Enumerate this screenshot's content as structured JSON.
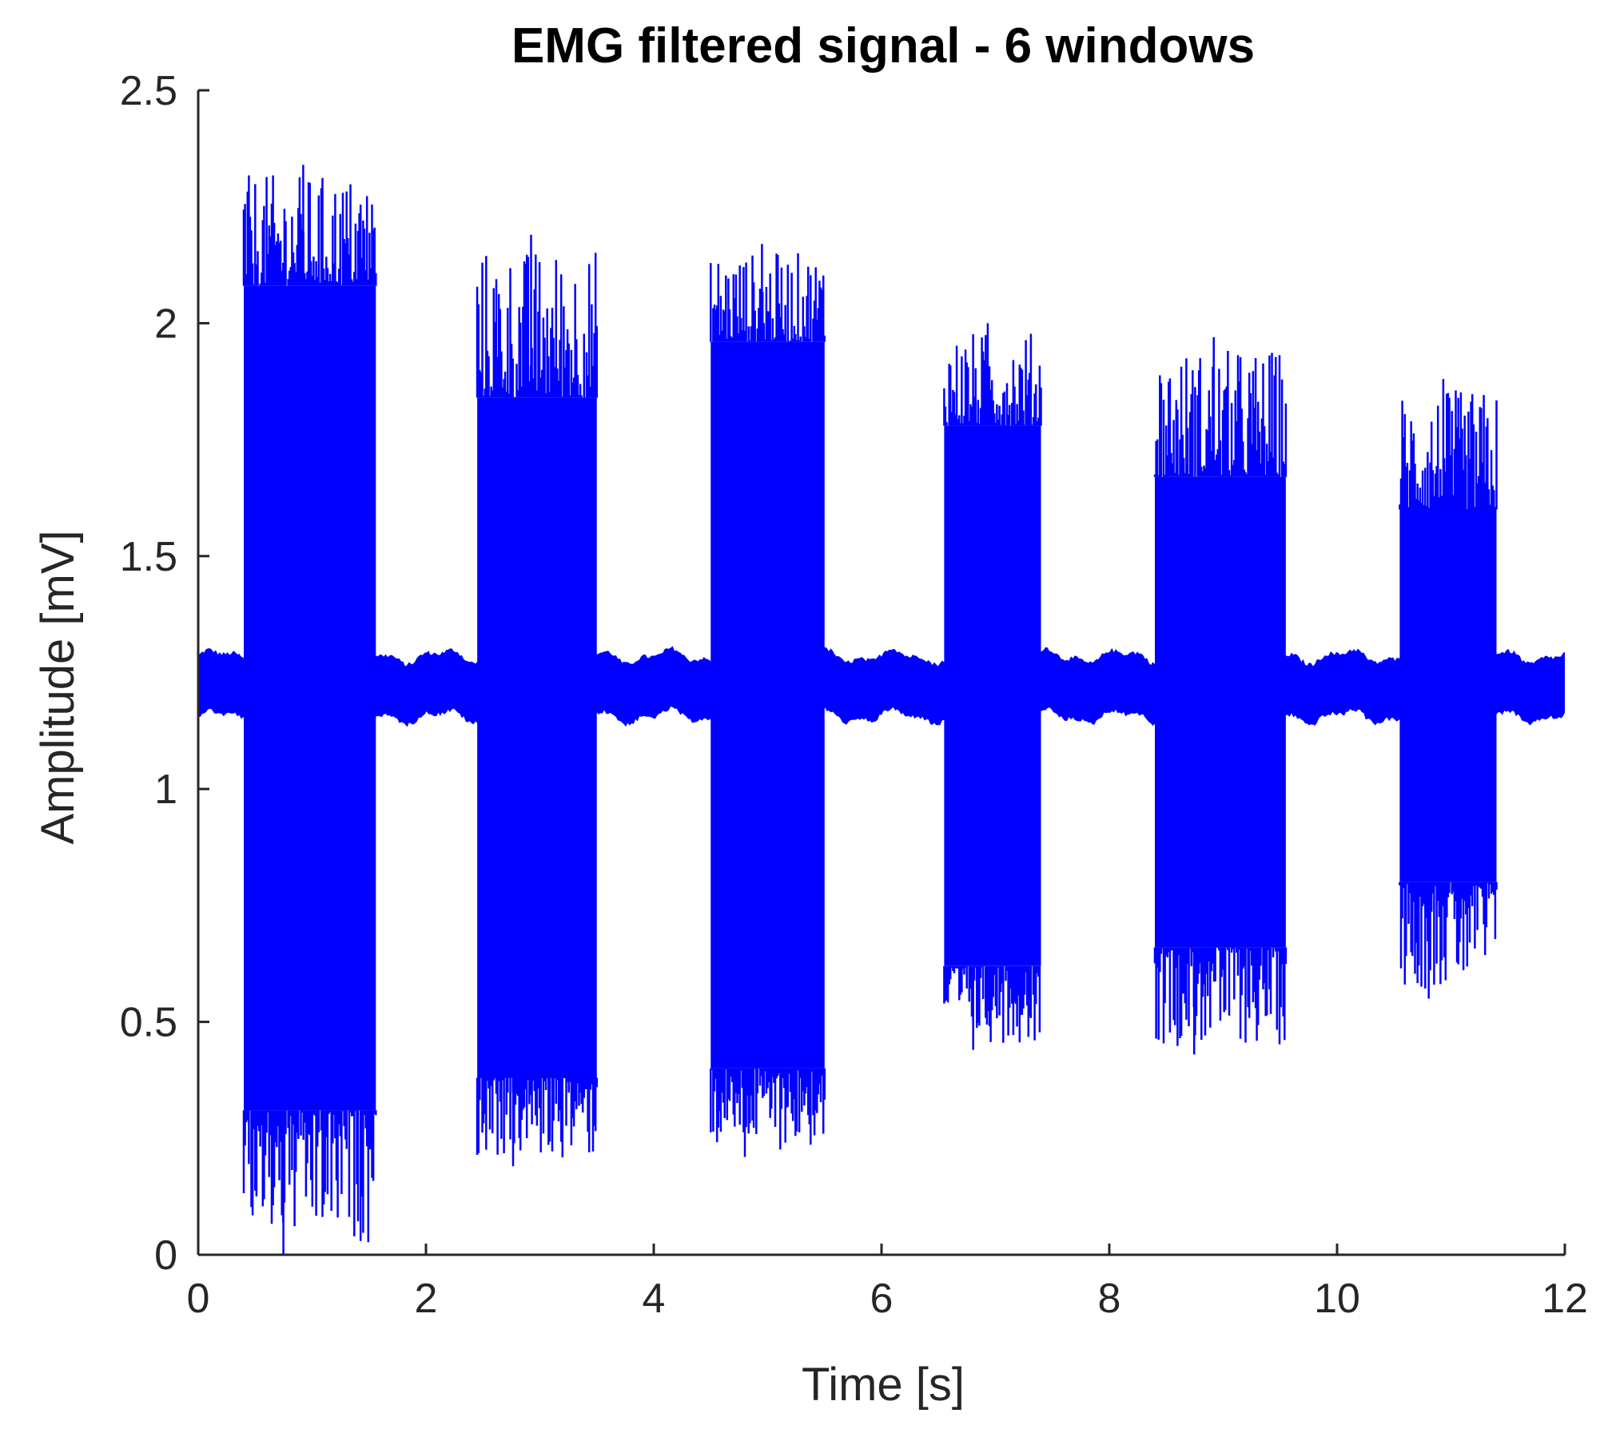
{
  "chart_data": {
    "type": "line",
    "title": "EMG filtered signal - 6 windows",
    "xlabel": "Time [s]",
    "ylabel": "Amplitude [mV]",
    "xlim": [
      0,
      12
    ],
    "ylim": [
      0,
      2.5
    ],
    "xticks": [
      0,
      2,
      4,
      6,
      8,
      10,
      12
    ],
    "yticks": [
      0,
      0.5,
      1,
      1.5,
      2,
      2.5
    ],
    "xtick_labels": [
      "0",
      "2",
      "4",
      "6",
      "8",
      "10",
      "12"
    ],
    "ytick_labels": [
      "0",
      "0.5",
      "1",
      "1.5",
      "2",
      "2.5"
    ],
    "grid": false,
    "series": [
      {
        "color": "#0000ff",
        "baseline": {
          "center": 1.22,
          "min": 1.15,
          "max": 1.29
        },
        "windows": [
          {
            "start": 0.4,
            "end": 1.56,
            "body_max": 2.08,
            "body_min": 0.31,
            "peak_max": 2.34,
            "peak_min": 0.0
          },
          {
            "start": 2.45,
            "end": 3.5,
            "body_max": 1.84,
            "body_min": 0.38,
            "peak_max": 2.19,
            "peak_min": 0.19
          },
          {
            "start": 4.5,
            "end": 5.5,
            "body_max": 1.96,
            "body_min": 0.4,
            "peak_max": 2.17,
            "peak_min": 0.21
          },
          {
            "start": 6.55,
            "end": 7.4,
            "body_max": 1.78,
            "body_min": 0.62,
            "peak_max": 2.0,
            "peak_min": 0.44
          },
          {
            "start": 8.4,
            "end": 9.55,
            "body_max": 1.67,
            "body_min": 0.66,
            "peak_max": 1.97,
            "peak_min": 0.43
          },
          {
            "start": 10.55,
            "end": 11.4,
            "body_max": 1.6,
            "body_min": 0.8,
            "peak_max": 1.88,
            "peak_min": 0.55
          }
        ]
      }
    ]
  }
}
